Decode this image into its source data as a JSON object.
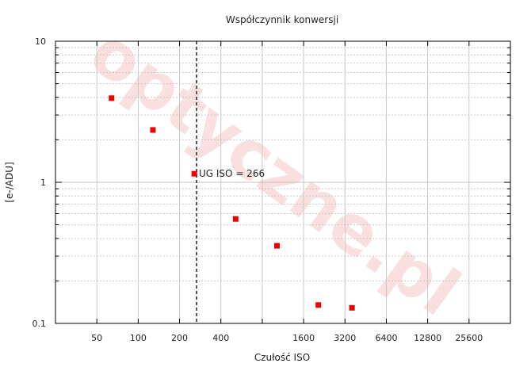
{
  "chart_data": {
    "type": "scatter",
    "title": "Współczynnik konwersji",
    "xlabel": "Czułość ISO",
    "ylabel": "[e-/ADU]",
    "x_scale": "log2",
    "y_scale": "log10",
    "xlim": [
      25,
      51200
    ],
    "ylim": [
      0.1,
      10
    ],
    "x_ticks": [
      50,
      100,
      200,
      400,
      800,
      1600,
      3200,
      6400,
      12800,
      25600
    ],
    "x_tick_labels": [
      "50",
      "100",
      "200",
      "400",
      "",
      "1600",
      "3200",
      "6400",
      "12800",
      "25600"
    ],
    "y_ticks": [
      0.1,
      1,
      10
    ],
    "y_tick_labels": [
      "0.1",
      "1",
      "10"
    ],
    "grid": true,
    "series": [
      {
        "color": "#ee0000",
        "points": [
          {
            "x": 64,
            "y": 3.95
          },
          {
            "x": 128,
            "y": 2.35
          },
          {
            "x": 256,
            "y": 1.15
          },
          {
            "x": 512,
            "y": 0.55
          },
          {
            "x": 1024,
            "y": 0.355
          },
          {
            "x": 2048,
            "y": 0.135
          },
          {
            "x": 3600,
            "y": 0.129
          }
        ]
      }
    ],
    "reference_line": {
      "x": 266,
      "label": "UG ISO = 266",
      "style": "dashed"
    },
    "watermark": "optyczne.pl"
  }
}
